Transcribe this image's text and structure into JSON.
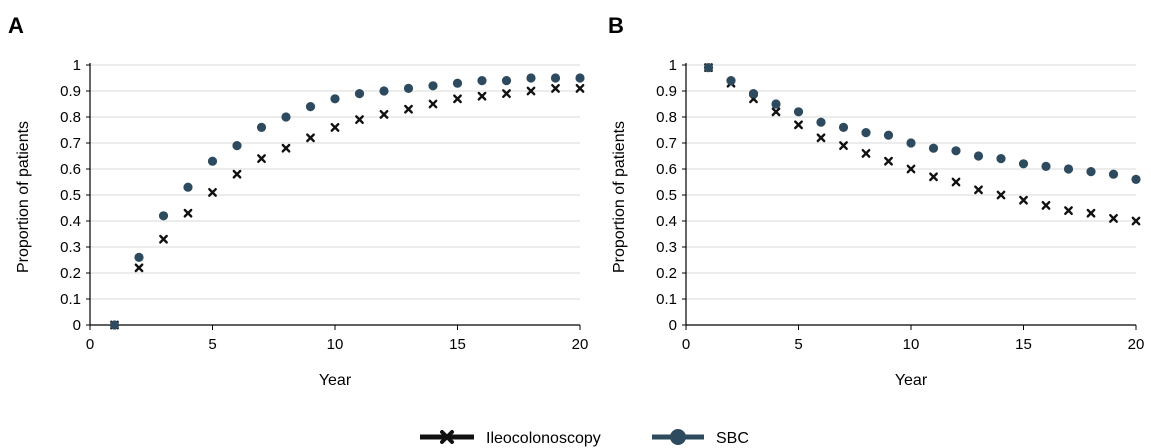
{
  "colors": {
    "sbc": "#2e4a5e",
    "ileocolonoscopy": "#111111",
    "grid": "#d9d9d9"
  },
  "legend": {
    "items": [
      {
        "label": "Ileocolonoscopy",
        "marker": "x-icon"
      },
      {
        "label": "SBC",
        "marker": "circle-icon"
      }
    ]
  },
  "chart_data": [
    {
      "panel": "A",
      "type": "scatter",
      "xlabel": "Year",
      "ylabel": "Proportion of patients",
      "xlim": [
        0,
        20
      ],
      "ylim": [
        0,
        1
      ],
      "xticks": [
        0,
        5,
        10,
        15,
        20
      ],
      "yticks": [
        0,
        0.1,
        0.2,
        0.3,
        0.4,
        0.5,
        0.6,
        0.7,
        0.8,
        0.9,
        1
      ],
      "ytick_labels": [
        "0",
        "0.1",
        "0.2",
        "0.3",
        "0.4",
        "0.5",
        "0.6",
        "0.7",
        "0.8",
        "0.9",
        "1"
      ],
      "grid": "horizontal",
      "x": [
        1,
        2,
        3,
        4,
        5,
        6,
        7,
        8,
        9,
        10,
        11,
        12,
        13,
        14,
        15,
        16,
        17,
        18,
        19,
        20
      ],
      "series": [
        {
          "name": "Ileocolonoscopy",
          "marker": "x",
          "values": [
            0,
            0.22,
            0.33,
            0.43,
            0.51,
            0.58,
            0.64,
            0.68,
            0.72,
            0.76,
            0.79,
            0.81,
            0.83,
            0.85,
            0.87,
            0.88,
            0.89,
            0.9,
            0.91,
            0.91
          ]
        },
        {
          "name": "SBC",
          "marker": "circle",
          "values": [
            0,
            0.26,
            0.42,
            0.53,
            0.63,
            0.69,
            0.76,
            0.8,
            0.84,
            0.87,
            0.89,
            0.9,
            0.91,
            0.92,
            0.93,
            0.94,
            0.94,
            0.95,
            0.95,
            0.95
          ]
        }
      ]
    },
    {
      "panel": "B",
      "type": "scatter",
      "xlabel": "Year",
      "ylabel": "Proportion of patients",
      "xlim": [
        0,
        20
      ],
      "ylim": [
        0,
        1
      ],
      "xticks": [
        0,
        5,
        10,
        15,
        20
      ],
      "yticks": [
        0,
        0.1,
        0.2,
        0.3,
        0.4,
        0.5,
        0.6,
        0.7,
        0.8,
        0.9,
        1
      ],
      "ytick_labels": [
        "0",
        "0.1",
        "0.2",
        "0.3",
        "0.4",
        "0.5",
        "0.6",
        "0.7",
        "0.8",
        "0.9",
        "1"
      ],
      "grid": "horizontal",
      "x": [
        1,
        2,
        3,
        4,
        5,
        6,
        7,
        8,
        9,
        10,
        11,
        12,
        13,
        14,
        15,
        16,
        17,
        18,
        19,
        20
      ],
      "series": [
        {
          "name": "Ileocolonoscopy",
          "marker": "x",
          "values": [
            0.99,
            0.93,
            0.87,
            0.82,
            0.77,
            0.72,
            0.69,
            0.66,
            0.63,
            0.6,
            0.57,
            0.55,
            0.52,
            0.5,
            0.48,
            0.46,
            0.44,
            0.43,
            0.41,
            0.4
          ]
        },
        {
          "name": "SBC",
          "marker": "circle",
          "values": [
            0.99,
            0.94,
            0.89,
            0.85,
            0.82,
            0.78,
            0.76,
            0.74,
            0.73,
            0.7,
            0.68,
            0.67,
            0.65,
            0.64,
            0.62,
            0.61,
            0.6,
            0.59,
            0.58,
            0.56
          ]
        }
      ]
    }
  ]
}
